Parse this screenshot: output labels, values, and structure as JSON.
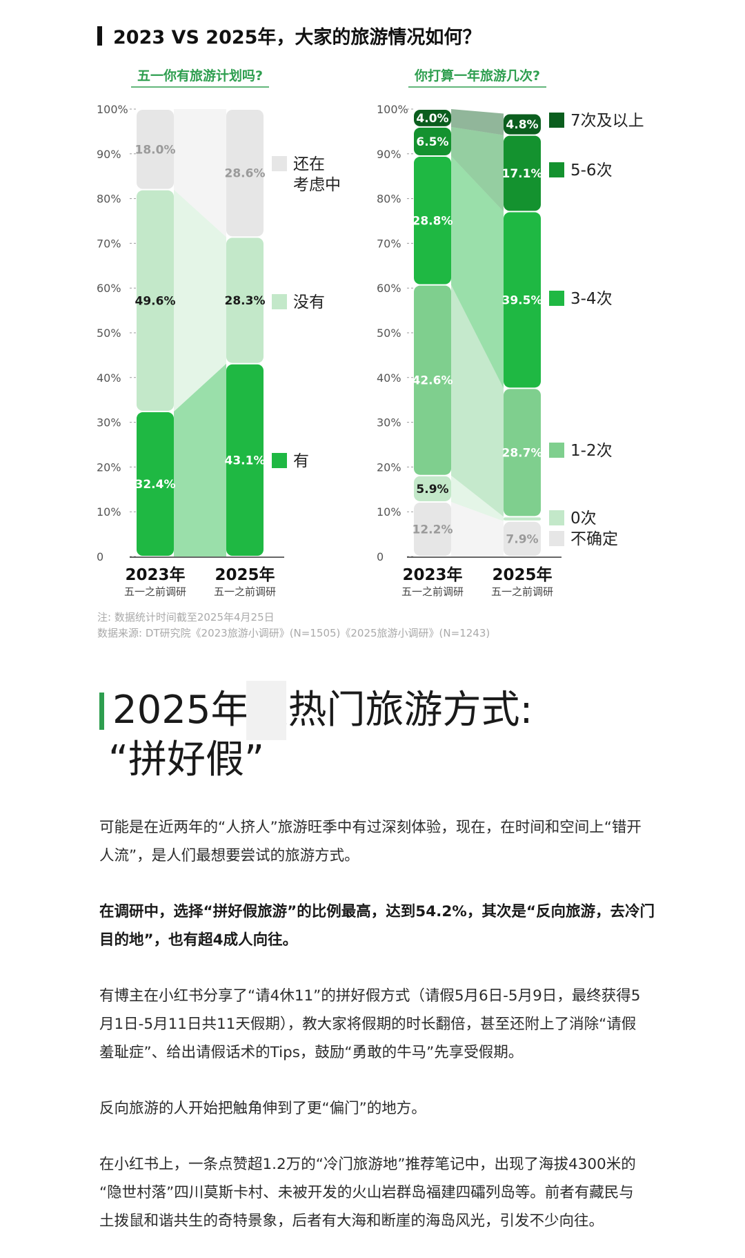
{
  "header": {
    "title": "2023 VS 2025年，大家的旅游情况如何？"
  },
  "chart_data": [
    {
      "type": "bar",
      "subtype": "stacked-100",
      "title": "五一你有旅游计划吗?",
      "categories": [
        "2023年",
        "2025年"
      ],
      "category_subtitles": [
        "五一之前调研",
        "五一之前调研"
      ],
      "y_ticks": [
        "0",
        "10%",
        "20%",
        "30%",
        "40%",
        "50%",
        "60%",
        "70%",
        "80%",
        "90%",
        "100%"
      ],
      "ylim": [
        0,
        100
      ],
      "series": [
        {
          "name": "有",
          "values": [
            32.4,
            43.1
          ],
          "labels": [
            "32.4%",
            "43.1%"
          ],
          "color": "#1fb843",
          "label_color": "#ffffff"
        },
        {
          "name": "没有",
          "values": [
            49.6,
            28.3
          ],
          "labels": [
            "49.6%",
            "28.3%"
          ],
          "color": "#c3e8c9",
          "label_color": "#1a1a1a"
        },
        {
          "name": "还在考虑中",
          "legend_lines": [
            "还在",
            "考虑中"
          ],
          "values": [
            18.0,
            28.6
          ],
          "labels": [
            "18.0%",
            "28.6%"
          ],
          "color": "#e6e6e6",
          "label_color": "#9a9a9a"
        }
      ],
      "legend": "right"
    },
    {
      "type": "bar",
      "subtype": "stacked-100",
      "title": "你打算一年旅游几次?",
      "categories": [
        "2023年",
        "2025年"
      ],
      "category_subtitles": [
        "五一之前调研",
        "五一之前调研"
      ],
      "y_ticks": [
        "0",
        "10%",
        "20%",
        "30%",
        "40%",
        "50%",
        "60%",
        "70%",
        "80%",
        "90%",
        "100%"
      ],
      "ylim": [
        0,
        100
      ],
      "series": [
        {
          "name": "不确定",
          "values": [
            12.2,
            7.9
          ],
          "labels": [
            "12.2%",
            "7.9%"
          ],
          "color": "#e6e6e6",
          "label_color": "#9a9a9a"
        },
        {
          "name": "0次",
          "values": [
            5.9,
            1.0
          ],
          "labels": [
            "5.9%",
            ""
          ],
          "color": "#c3e8c9",
          "label_color": "#1a1a1a"
        },
        {
          "name": "1-2次",
          "values": [
            42.6,
            28.7
          ],
          "labels": [
            "42.6%",
            "28.7%"
          ],
          "color": "#7fcf8e",
          "label_color": "#ffffff"
        },
        {
          "name": "3-4次",
          "values": [
            28.8,
            39.5
          ],
          "labels": [
            "28.8%",
            "39.5%"
          ],
          "color": "#1fb843",
          "label_color": "#ffffff"
        },
        {
          "name": "5-6次",
          "values": [
            6.5,
            17.1
          ],
          "labels": [
            "6.5%",
            "17.1%"
          ],
          "color": "#14922f",
          "label_color": "#ffffff"
        },
        {
          "name": "7次及以上",
          "values": [
            4.0,
            4.8
          ],
          "labels": [
            "4.0%",
            "4.8%"
          ],
          "color": "#0b5e1e",
          "label_color": "#ffffff"
        }
      ],
      "legend": "right"
    }
  ],
  "notes": {
    "note": "注: 数据统计时间截至2025年4月25日",
    "source": "数据来源: DT研究院《2023旅游小调研》(N=1505)《2025旅游小调研》(N=1243)"
  },
  "article": {
    "section_title_line1": "2025年最热门旅游方式:",
    "section_title_line2": "“拼好假”",
    "paragraphs": [
      {
        "bold": false,
        "lines": [
          "可能是在近两年的“人挤人”旅游旺季中有过深刻体验，现在，在时间和空间上“错开",
          "人流”，是人们最想要尝试的旅游方式。"
        ]
      },
      {
        "bold": true,
        "lines": [
          "在调研中，选择“拼好假旅游”的比例最高，达到54.2%，其次是“反向旅游，去冷门",
          "目的地”，也有超4成人向往。"
        ]
      },
      {
        "bold": false,
        "lines": [
          "有博主在小红书分享了“请4休11”的拼好假方式（请假5月6日-5月9日，最终获得5",
          "月1日-5月11日共11天假期），教大家将假期的时长翻倍，甚至还附上了消除“请假",
          "羞耻症”、给出请假话术的Tips，鼓励“勇敢的牛马”先享受假期。"
        ]
      },
      {
        "bold": false,
        "lines": [
          "反向旅游的人开始把触角伸到了更“偏门”的地方。"
        ]
      },
      {
        "bold": false,
        "lines": [
          "在小红书上，一条点赞超1.2万的“冷门旅游地”推荐笔记中，出现了海拔4300米的",
          "“隐世村落”四川莫斯卡村、未被开发的火山岩群岛福建四礵列岛等。前者有藏民与",
          "土拨鼠和谐共生的奇特景象，后者有大海和断崖的海岛风光，引发不少向往。"
        ]
      }
    ]
  }
}
